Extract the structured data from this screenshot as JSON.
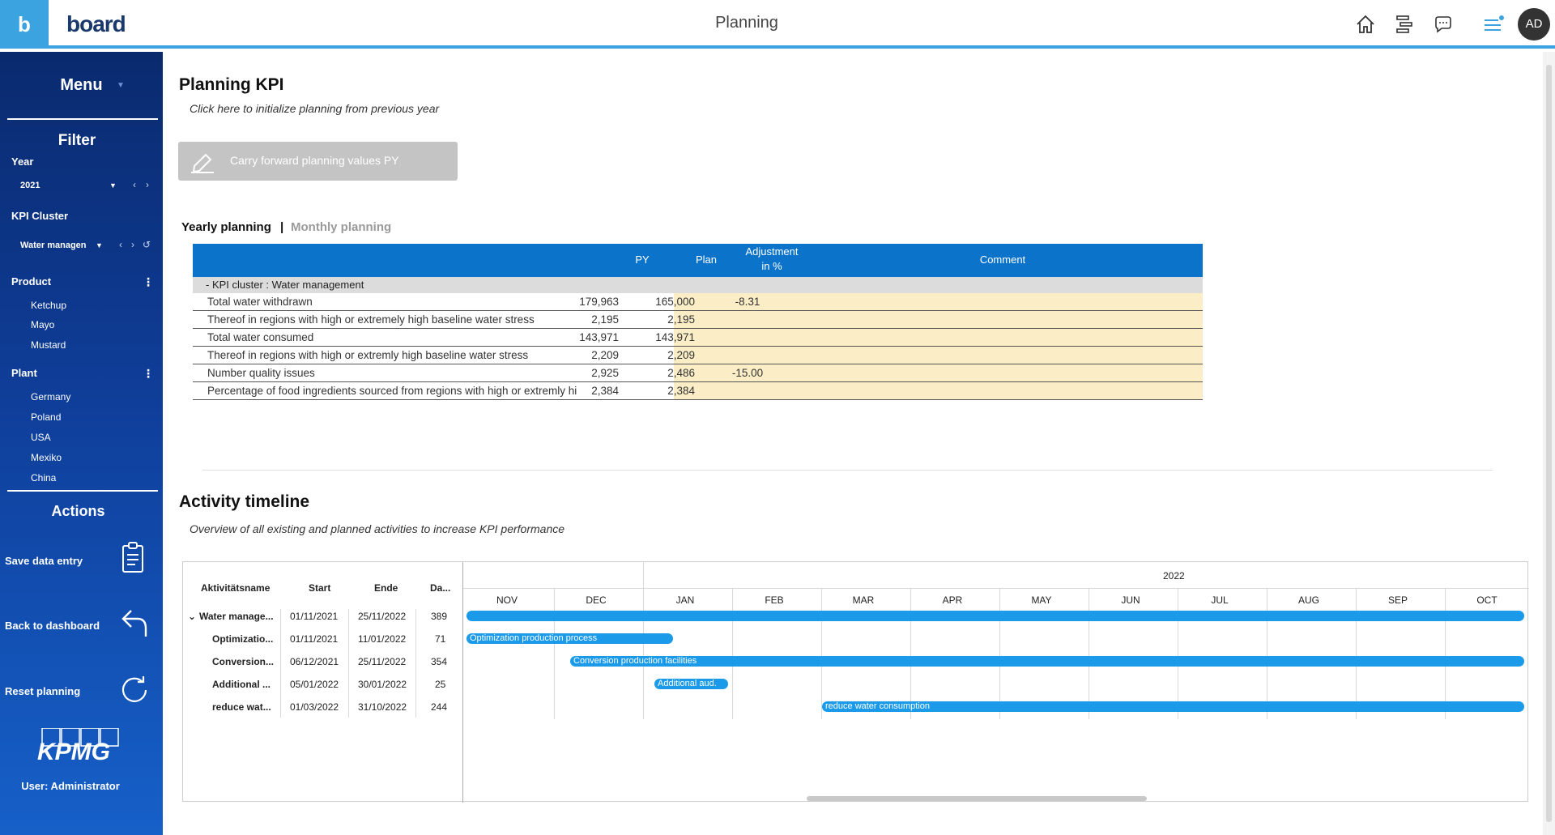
{
  "topbar": {
    "logo_letter": "b",
    "brand": "board",
    "title": "Planning",
    "avatar_initials": "AD",
    "icons": [
      "home-icon",
      "hierarchy-icon",
      "chat-icon",
      "notifications-menu-icon"
    ]
  },
  "sidebar": {
    "menu_label": "Menu",
    "filter_label": "Filter",
    "year": {
      "label": "Year",
      "value": "2021"
    },
    "kpi_cluster": {
      "label": "KPI Cluster",
      "value": "Water managen"
    },
    "product": {
      "label": "Product",
      "items": [
        "Ketchup",
        "Mayo",
        "Mustard"
      ]
    },
    "plant": {
      "label": "Plant",
      "items": [
        "Germany",
        "Poland",
        "USA",
        "Mexiko",
        "China"
      ]
    },
    "actions_label": "Actions",
    "actions": [
      {
        "label": "Save data entry",
        "icon": "clipboard-icon"
      },
      {
        "label": "Back to dashboard",
        "icon": "back-arrow-icon"
      },
      {
        "label": "Reset planning",
        "icon": "refresh-icon"
      }
    ],
    "logo_text": "KPMG",
    "user_label": "User: Administrator"
  },
  "planning": {
    "title": "Planning KPI",
    "subtitle": "Click here to initialize planning from previous year",
    "button_label": "Carry forward planning values PY",
    "tab_yearly": "Yearly planning",
    "tab_separator": "|",
    "tab_monthly": "Monthly planning",
    "columns": {
      "py": "PY",
      "plan": "Plan",
      "adjustment_line1": "Adjustment",
      "adjustment_line2": "in %",
      "comment": "Comment"
    },
    "group_label": "-  KPI cluster : Water management",
    "rows": [
      {
        "name": "Total water withdrawn",
        "py": "179,963",
        "plan": "165,000",
        "adj": "-8.31"
      },
      {
        "name": "Thereof in regions with high or extremely high baseline water stress",
        "py": "2,195",
        "plan": "2,195",
        "adj": ""
      },
      {
        "name": "Total water consumed",
        "py": "143,971",
        "plan": "143,971",
        "adj": ""
      },
      {
        "name": "Thereof in regions with high or extremly high baseline water stress",
        "py": "2,209",
        "plan": "2,209",
        "adj": ""
      },
      {
        "name": "Number quality issues",
        "py": "2,925",
        "plan": "2,486",
        "adj": "-15.00"
      },
      {
        "name": "Percentage of food ingredients sourced from regions with high or extremly hi",
        "py": "2,384",
        "plan": "2,384",
        "adj": ""
      }
    ]
  },
  "timeline": {
    "title": "Activity timeline",
    "subtitle": "Overview of all existing and planned activities to increase KPI performance",
    "headers": {
      "name": "Aktivitätsname",
      "start": "Start",
      "end": "Ende",
      "duration": "Da..."
    },
    "year_label": "2022",
    "months": [
      "NOV",
      "DEC",
      "JAN",
      "FEB",
      "MAR",
      "APR",
      "MAY",
      "JUN",
      "JUL",
      "AUG",
      "SEP",
      "OCT"
    ],
    "rows": [
      {
        "name": "Water manage...",
        "start": "01/11/2021",
        "end": "25/11/2022",
        "duration": "389",
        "bar_label": ""
      },
      {
        "name": "Optimizatio...",
        "start": "01/11/2021",
        "end": "11/01/2022",
        "duration": "71",
        "bar_label": "Optimization production process"
      },
      {
        "name": "Conversion...",
        "start": "06/12/2021",
        "end": "25/11/2022",
        "duration": "354",
        "bar_label": "Conversion production facilities"
      },
      {
        "name": "Additional ...",
        "start": "05/01/2022",
        "end": "30/01/2022",
        "duration": "25",
        "bar_label": "Additional aud."
      },
      {
        "name": "reduce wat...",
        "start": "01/03/2022",
        "end": "31/10/2022",
        "duration": "244",
        "bar_label": "reduce water consumption"
      }
    ]
  },
  "colors": {
    "accent": "#3aa3e0",
    "table_header": "#0b73c9",
    "plan_fill": "#fbedc5",
    "gantt_bar": "#1a9ae8"
  }
}
